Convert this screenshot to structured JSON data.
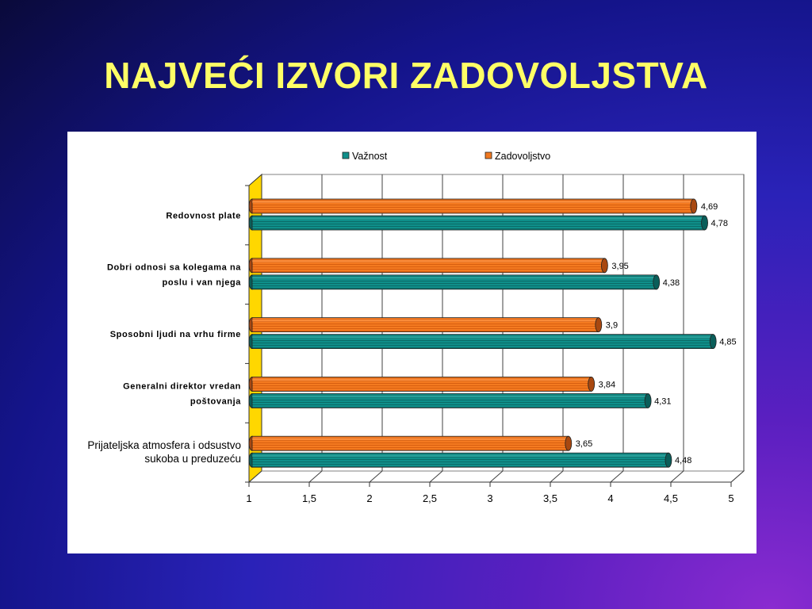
{
  "slide": {
    "title": "NAJVEĆI IZVORI ZADOVOLJSTVA"
  },
  "chart_data": {
    "type": "bar",
    "orientation": "horizontal",
    "three_d": true,
    "categories": [
      "Redovnost plate",
      "Dobri odnosi sa kolegama na poslu i van njega",
      "Sposobni ljudi na vrhu firme",
      "Generalni direktor vredan poštovanja",
      "Prijateljska atmosfera i odsustvo sukoba u preduzeću"
    ],
    "category_lines": [
      [
        "Redovnost plate"
      ],
      [
        "Dobri odnosi sa kolegama na",
        "poslu i van njega"
      ],
      [
        "Sposobni ljudi na vrhu firme"
      ],
      [
        "Generalni direktor vredan",
        "poštovanja"
      ],
      [
        "Prijateljska atmosfera i odsustvo",
        "sukoba u preduzeću"
      ]
    ],
    "series": [
      {
        "name": "Važnost",
        "color": "#0f8f8a",
        "values": [
          4.78,
          4.38,
          4.85,
          4.31,
          4.48
        ],
        "labels": [
          "4,78",
          "4,38",
          "4,85",
          "4,31",
          "4,48"
        ]
      },
      {
        "name": "Zadovoljstvo",
        "color": "#f07820",
        "values": [
          4.69,
          3.95,
          3.9,
          3.84,
          3.65
        ],
        "labels": [
          "4,69",
          "3,95",
          "3,9",
          "3,84",
          "3,65"
        ]
      }
    ],
    "xlim": [
      1,
      5
    ],
    "x_ticks": [
      1,
      1.5,
      2,
      2.5,
      3,
      3.5,
      4,
      4.5,
      5
    ],
    "x_tick_labels": [
      "1",
      "1,5",
      "2",
      "2,5",
      "3",
      "3,5",
      "4",
      "4,5",
      "5"
    ],
    "grid": true,
    "legend_position": "top",
    "wall_color": "#ffd700"
  }
}
